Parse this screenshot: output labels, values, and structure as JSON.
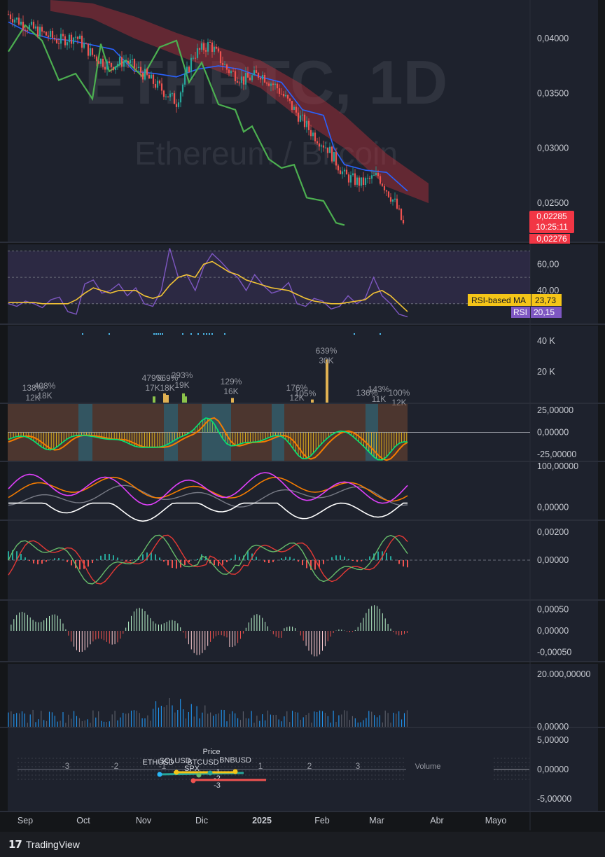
{
  "branding": {
    "logo_mark": "17",
    "logo_text": "TradingView"
  },
  "colors": {
    "background": "#141619",
    "pane": "#1e222d",
    "price_label": "#f23645",
    "rsi_line": "#7e57c2",
    "rsi_ma_line": "#f2c335",
    "candle_up": "#26a69a",
    "candle_down": "#ef5350",
    "green_line": "#4caf50",
    "blue_line": "#2962ff",
    "cloud": "#b7303b"
  },
  "chart_data": [
    {
      "type": "line",
      "pane": "price",
      "watermark_symbol": "ETHBTC, 1D",
      "watermark_name": "Ethereum / Bitcoin",
      "y_ticks": [
        "0,04000",
        "0,03500",
        "0,03000",
        "0,02500"
      ],
      "y_tick_values": [
        0.04,
        0.035,
        0.03,
        0.025
      ],
      "ylim": [
        0.0215,
        0.0435
      ],
      "last_price": "0,02285",
      "countdown": "10:25:11",
      "second_price": "0,02276",
      "series": [
        {
          "kind": "candles",
          "x": [
            0,
            8,
            16,
            24,
            32,
            40,
            48,
            56,
            64,
            72,
            80,
            88,
            96,
            104,
            112,
            120,
            128,
            136,
            144,
            152,
            160,
            168,
            176,
            184,
            188
          ],
          "values": [
            0.0422,
            0.0412,
            0.0405,
            0.0398,
            0.0402,
            0.0385,
            0.0375,
            0.038,
            0.0368,
            0.0355,
            0.0342,
            0.0385,
            0.0395,
            0.0372,
            0.0362,
            0.0368,
            0.0355,
            0.0335,
            0.0315,
            0.03,
            0.0275,
            0.0268,
            0.0275,
            0.025,
            0.023
          ]
        },
        {
          "kind": "baseline",
          "x": [
            0,
            10,
            20,
            30,
            40,
            50,
            60,
            70,
            80,
            90,
            100,
            110,
            120,
            130,
            140,
            150,
            155,
            160,
            170,
            180,
            190
          ],
          "values": [
            0.0415,
            0.0405,
            0.04,
            0.0398,
            0.0394,
            0.039,
            0.037,
            0.0368,
            0.0365,
            0.0372,
            0.0375,
            0.0372,
            0.0365,
            0.036,
            0.0335,
            0.033,
            0.03,
            0.0285,
            0.028,
            0.0278,
            0.0261
          ]
        },
        {
          "kind": "lagging",
          "x": [
            0,
            8,
            16,
            24,
            32,
            40,
            44,
            48,
            56,
            64,
            72,
            80,
            86,
            92,
            100,
            108,
            112,
            116,
            124,
            130,
            136,
            142,
            150,
            156,
            160
          ],
          "values": [
            0.0388,
            0.0412,
            0.0398,
            0.0362,
            0.0368,
            0.0345,
            0.0395,
            0.037,
            0.038,
            0.0365,
            0.0392,
            0.0398,
            0.036,
            0.0378,
            0.034,
            0.0335,
            0.0315,
            0.032,
            0.029,
            0.0282,
            0.0285,
            0.0255,
            0.0252,
            0.0232,
            0.023
          ]
        },
        {
          "kind": "cloud",
          "x": [
            20,
            40,
            60,
            80,
            100,
            120,
            140,
            160,
            180,
            200
          ],
          "upper": [
            0.0435,
            0.0432,
            0.042,
            0.0405,
            0.0392,
            0.038,
            0.0358,
            0.033,
            0.0295,
            0.0268
          ],
          "lower": [
            0.0425,
            0.0418,
            0.04,
            0.0385,
            0.037,
            0.0355,
            0.0325,
            0.03,
            0.0265,
            0.025
          ]
        }
      ]
    },
    {
      "type": "line",
      "pane": "rsi",
      "y_ticks": [
        "60,00",
        "40,00"
      ],
      "y_tick_values": [
        60,
        40
      ],
      "ylim": [
        15,
        75
      ],
      "band": [
        30,
        70
      ],
      "legend": [
        {
          "name": "RSI-based MA",
          "value": "23,73"
        },
        {
          "name": "RSI",
          "value": "20,15"
        }
      ],
      "series": [
        {
          "name": "RSI",
          "values": [
            30,
            28,
            32,
            30,
            27,
            33,
            35,
            24,
            22,
            45,
            48,
            38,
            40,
            45,
            36,
            42,
            30,
            28,
            40,
            72,
            50,
            52,
            40,
            58,
            68,
            62,
            55,
            50,
            40,
            52,
            44,
            38,
            40,
            46,
            30,
            28,
            34,
            32,
            26,
            28,
            36,
            30,
            34,
            50,
            36,
            30,
            22,
            20
          ]
        },
        {
          "name": "RSI-based MA",
          "values": [
            31,
            31,
            31,
            31,
            30,
            30,
            30,
            30,
            33,
            38,
            42,
            40,
            38,
            40,
            40,
            40,
            36,
            34,
            36,
            44,
            50,
            52,
            50,
            60,
            62,
            58,
            54,
            52,
            48,
            46,
            44,
            42,
            41,
            40,
            37,
            34,
            32,
            31,
            30,
            30,
            31,
            32,
            33,
            38,
            40,
            36,
            30,
            24
          ]
        }
      ]
    },
    {
      "type": "bar",
      "pane": "volume-spikes",
      "y_ticks": [
        "40 K",
        "20 K"
      ],
      "y_tick_values": [
        40,
        20
      ],
      "ylim": [
        0,
        50
      ],
      "annotations": [
        {
          "pct": "138%",
          "val": "12K"
        },
        {
          "pct": "408%",
          "val": "18K"
        },
        {
          "pct": "479%",
          "val": "17K"
        },
        {
          "pct": "369%",
          "val": "18K"
        },
        {
          "pct": "293%",
          "val": "19K"
        },
        {
          "pct": "129%",
          "val": "16K"
        },
        {
          "pct": "639%",
          "val": "30K"
        },
        {
          "pct": "176%",
          "val": "12K"
        },
        {
          "pct": "105%",
          "val": ""
        },
        {
          "pct": "136%",
          "val": ""
        },
        {
          "pct": "143%",
          "val": "11K"
        },
        {
          "pct": "100%",
          "val": "12K"
        }
      ],
      "bars": [
        {
          "x": 104,
          "value": 4
        },
        {
          "x": 111,
          "value": 6
        },
        {
          "x": 126,
          "value": 6
        },
        {
          "x": 152,
          "value": 3
        },
        {
          "x": 218,
          "value": 30
        }
      ]
    },
    {
      "type": "area",
      "pane": "oscillator",
      "y_ticks": [
        "25,00000",
        "0,00000",
        "-25,00000"
      ],
      "y_tick_values": [
        25,
        0,
        -25
      ],
      "ylim": [
        -32,
        32
      ]
    },
    {
      "type": "line",
      "pane": "stochastic",
      "y_ticks": [
        "100,00000",
        "0,00000"
      ],
      "y_tick_values": [
        100,
        0
      ],
      "ylim": [
        -30,
        110
      ]
    },
    {
      "type": "line",
      "pane": "macd",
      "y_ticks": [
        "0,00200",
        "0,00000"
      ],
      "y_tick_values": [
        0.002,
        0
      ],
      "ylim": [
        -0.0028,
        0.0028
      ]
    },
    {
      "type": "bar",
      "pane": "histogram",
      "y_ticks": [
        "0,00050",
        "0,00000",
        "-0,00050"
      ],
      "y_tick_values": [
        0.0005,
        0,
        -0.0005
      ],
      "ylim": [
        -0.0007,
        0.0007
      ]
    },
    {
      "type": "bar",
      "pane": "volume",
      "y_ticks": [
        "20.000,00000",
        "0,00000"
      ],
      "y_tick_values": [
        20000,
        0
      ],
      "ylim": [
        0,
        24000
      ]
    },
    {
      "type": "scatter",
      "pane": "correlation",
      "y_ticks": [
        "5,00000",
        "0,00000",
        "-5,00000"
      ],
      "y_tick_values": [
        5,
        0,
        -5
      ],
      "ylim": [
        -7,
        7
      ],
      "inner_x_ticks": [
        "-3",
        "-2",
        "-1",
        "1",
        "2",
        "3"
      ],
      "labels": [
        "Price",
        "ETHUSD",
        "SOLUSD",
        "BTCUSD",
        "BNBUSD",
        "SPX",
        "Volume",
        "-1",
        "-2",
        "-3"
      ]
    }
  ],
  "x_axis": {
    "labels": [
      "Sep",
      "Oct",
      "Nov",
      "Dic",
      "2025",
      "Feb",
      "Mar",
      "Abr",
      "Mayo"
    ]
  }
}
